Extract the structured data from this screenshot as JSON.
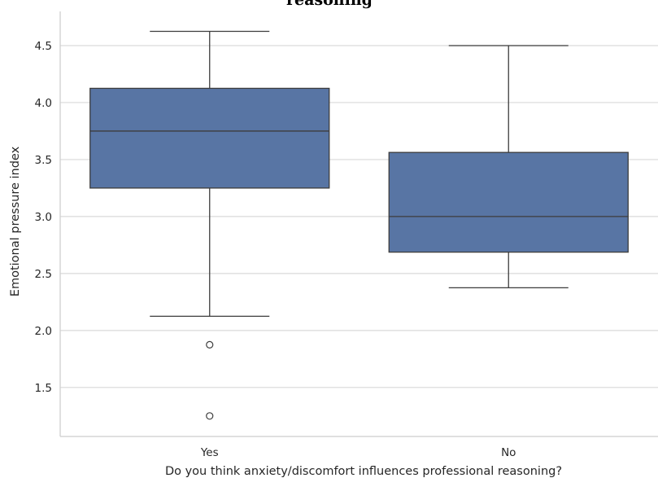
{
  "chart_data": {
    "type": "box",
    "title": "reasoning",
    "xlabel": "Do you think anxiety/discomfort influences professional reasoning?",
    "ylabel": "Emotional pressure index",
    "categories": [
      "Yes",
      "No"
    ],
    "boxes": [
      {
        "category": "Yes",
        "whisker_low": 2.125,
        "q1": 3.25,
        "median": 3.75,
        "q3": 4.125,
        "whisker_high": 4.625,
        "outliers": [
          1.875,
          1.25
        ]
      },
      {
        "category": "No",
        "whisker_low": 2.375,
        "q1": 2.6875,
        "median": 3.0,
        "q3": 3.5625,
        "whisker_high": 4.5,
        "outliers": []
      }
    ],
    "ylim": [
      1.07,
      4.8
    ],
    "yticks": [
      1.5,
      2.0,
      2.5,
      3.0,
      3.5,
      4.0,
      4.5
    ],
    "ytick_labels": [
      "1.5",
      "2.0",
      "2.5",
      "3.0",
      "3.5",
      "4.0",
      "4.5"
    ],
    "grid": "horizontal",
    "legend": "none",
    "colors": {
      "box_fill": "#5875a4",
      "line": "#3d3d3d",
      "grid": "#d9d9d9",
      "axes": "#cccccc"
    }
  }
}
